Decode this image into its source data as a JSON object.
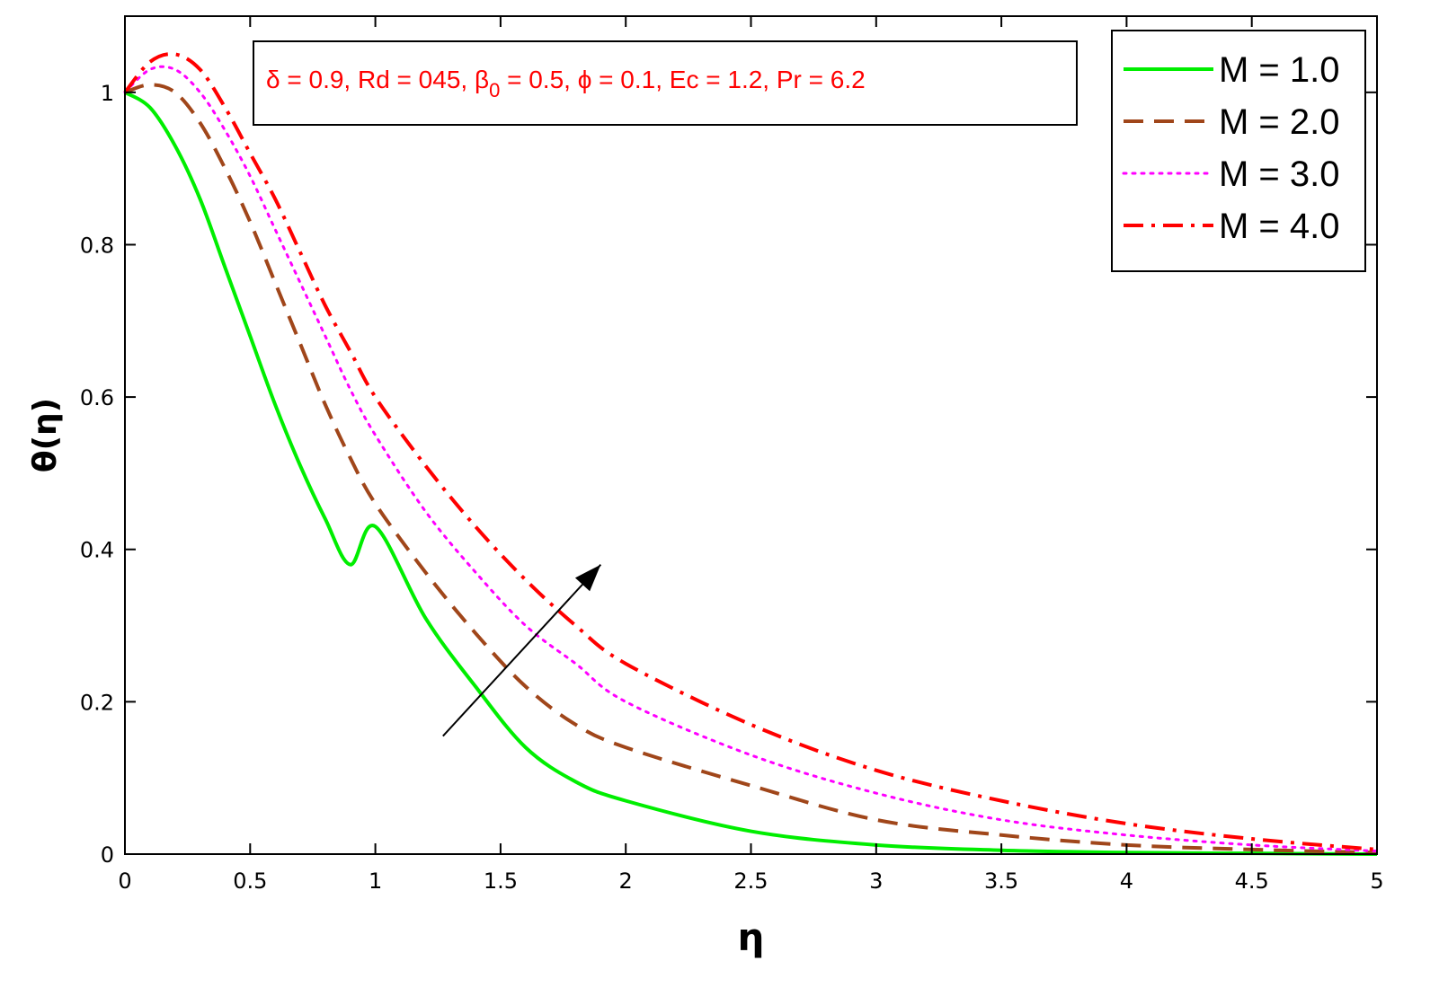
{
  "chart_data": {
    "type": "line",
    "xlabel": "η",
    "ylabel": "θ(η)",
    "xlim": [
      0,
      5
    ],
    "ylim": [
      0,
      1.1
    ],
    "xticks": [
      0,
      0.5,
      1,
      1.5,
      2,
      2.5,
      3,
      3.5,
      4,
      4.5,
      5
    ],
    "xtick_labels": [
      "0",
      "0.5",
      "1",
      "1.5",
      "2",
      "2.5",
      "3",
      "3.5",
      "4",
      "4.5",
      "5"
    ],
    "yticks": [
      0,
      0.2,
      0.4,
      0.6,
      0.8,
      1
    ],
    "ytick_labels": [
      "0",
      "0.2",
      "0.4",
      "0.6",
      "0.8",
      "1"
    ],
    "grid": false,
    "legend_position": "top-right",
    "annotation": {
      "parts": [
        "δ = 0.9, Rd = 045, β",
        "0",
        " = 0.5, ϕ = 0.1, Ec = 1.2, Pr = 6.2"
      ],
      "color": "#ff0000"
    },
    "arrow": {
      "from": [
        1.27,
        0.155
      ],
      "to": [
        1.9,
        0.38
      ],
      "meaning": "increasing M"
    },
    "x": [
      0,
      0.1,
      0.2,
      0.3,
      0.4,
      0.5,
      0.6,
      0.7,
      0.8,
      0.9,
      1.0,
      1.2,
      1.4,
      1.6,
      1.8,
      2.0,
      2.5,
      3.0,
      3.5,
      4.0,
      4.5,
      5.0
    ],
    "series": [
      {
        "name": "M = 1.0",
        "color": "#00ee00",
        "dash": "solid",
        "values": [
          1.0,
          0.98,
          0.93,
          0.86,
          0.77,
          0.68,
          0.59,
          0.51,
          0.44,
          0.38,
          0.43,
          0.31,
          0.22,
          0.14,
          0.095,
          0.07,
          0.03,
          0.012,
          0.005,
          0.002,
          0.001,
          0.0
        ]
      },
      {
        "name": "M = 2.0",
        "color": "#a0461a",
        "dash": "dashed",
        "values": [
          1.0,
          1.01,
          1.0,
          0.96,
          0.9,
          0.83,
          0.75,
          0.67,
          0.59,
          0.52,
          0.46,
          0.37,
          0.29,
          0.22,
          0.17,
          0.14,
          0.09,
          0.045,
          0.025,
          0.012,
          0.006,
          0.002
        ]
      },
      {
        "name": "M = 3.0",
        "color": "#ff00ff",
        "dash": "dotted",
        "values": [
          1.0,
          1.03,
          1.03,
          1.0,
          0.95,
          0.89,
          0.82,
          0.75,
          0.68,
          0.61,
          0.55,
          0.45,
          0.37,
          0.3,
          0.25,
          0.2,
          0.13,
          0.08,
          0.045,
          0.025,
          0.012,
          0.004
        ]
      },
      {
        "name": "M = 4.0",
        "color": "#ff0000",
        "dash": "dashdot",
        "values": [
          1.0,
          1.04,
          1.05,
          1.03,
          0.98,
          0.92,
          0.86,
          0.79,
          0.72,
          0.66,
          0.6,
          0.51,
          0.43,
          0.36,
          0.3,
          0.25,
          0.17,
          0.11,
          0.07,
          0.04,
          0.02,
          0.006
        ]
      }
    ]
  }
}
